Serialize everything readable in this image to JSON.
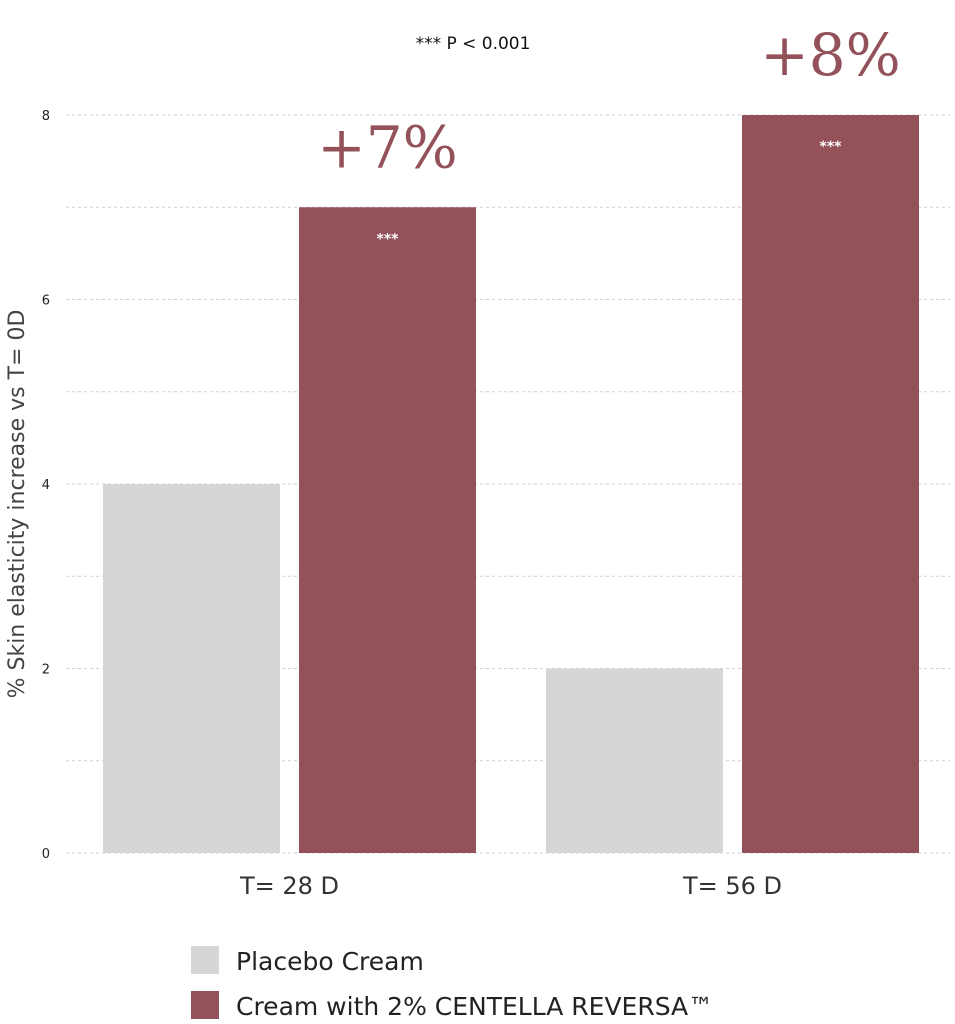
{
  "chart_data": {
    "type": "bar",
    "categories": [
      "T= 28 D",
      "T= 56 D"
    ],
    "series": [
      {
        "name": "Placebo Cream",
        "values": [
          4,
          2
        ],
        "color": "#d6d6d6",
        "significance": [
          "",
          ""
        ]
      },
      {
        "name": "Cream with 2% CENTELLA REVERSA™",
        "values": [
          7,
          8
        ],
        "color": "#93515a",
        "significance": [
          "***",
          "***"
        ]
      }
    ],
    "annotations": [
      "+7%",
      "+8%"
    ],
    "annotation_color": "#93515a",
    "note": "*** P < 0.001",
    "ylabel": "% Skin elasticity increase vs T= 0D",
    "xlabel": "",
    "ylim": [
      0,
      8
    ],
    "yticks": [
      0,
      2,
      4,
      6,
      8
    ],
    "grid": true,
    "legend_position": "bottom"
  }
}
